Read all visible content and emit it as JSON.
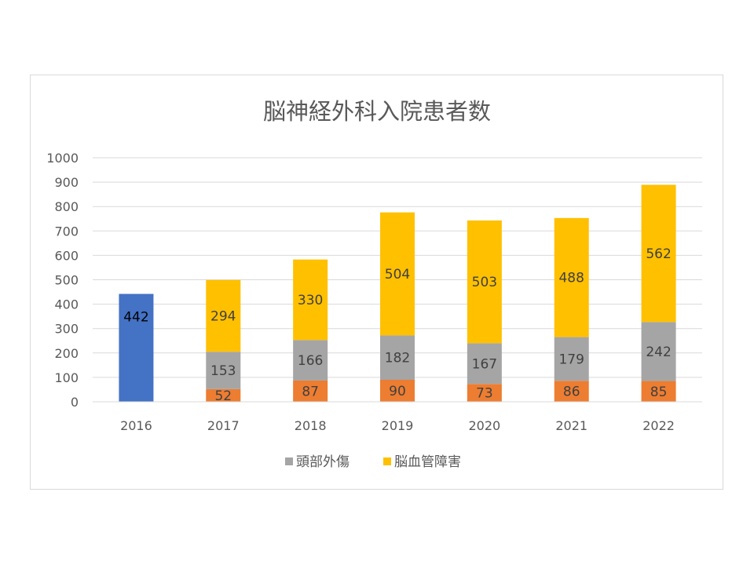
{
  "chart_data": {
    "type": "bar",
    "stacked": true,
    "title": "脳神経外科入院患者数",
    "categories": [
      "2016",
      "2017",
      "2018",
      "2019",
      "2020",
      "2021",
      "2022"
    ],
    "ylim": [
      0,
      1000
    ],
    "yticks": [
      0,
      100,
      200,
      300,
      400,
      500,
      600,
      700,
      800,
      900,
      1000
    ],
    "grid": true,
    "legend_position": "bottom",
    "total_2016": {
      "value": 442,
      "color": "#4472c4",
      "label_color": "#000000"
    },
    "series": [
      {
        "values": [
          null,
          52,
          87,
          90,
          73,
          86,
          85
        ],
        "color": "#ed7d31",
        "label_color": "#404040"
      },
      {
        "name": "頭部外傷",
        "values": [
          null,
          153,
          166,
          182,
          167,
          179,
          242
        ],
        "color": "#a5a5a5",
        "label_color": "#404040"
      },
      {
        "name": "脳血管障害",
        "values": [
          null,
          294,
          330,
          504,
          503,
          488,
          562
        ],
        "color": "#ffc000",
        "label_color": "#404040"
      }
    ]
  }
}
